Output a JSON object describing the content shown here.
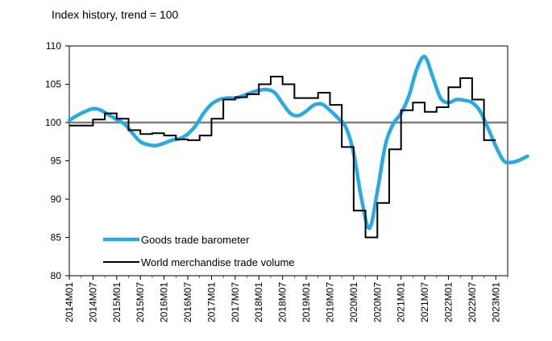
{
  "chart_data": {
    "type": "line",
    "title": "Index history, trend = 100",
    "xlabel": "",
    "ylabel": "",
    "ylim": [
      80,
      110
    ],
    "yticks": [
      80,
      85,
      90,
      95,
      100,
      105,
      110
    ],
    "xlim": [
      "2014M01",
      "2023M04"
    ],
    "xticks": [
      "2014M01",
      "2014M07",
      "2015M01",
      "2015M07",
      "2016M01",
      "2016M07",
      "2017M01",
      "2017M07",
      "2018M01",
      "2018M07",
      "2019M01",
      "2019M07",
      "2020M01",
      "2020M07",
      "2021M01",
      "2021M07",
      "2022M01",
      "2022M07",
      "2023M01"
    ],
    "grid": false,
    "legend_position": "bottom-left inside",
    "reference_line": {
      "y": 100,
      "color": "#7f7f7f"
    },
    "series": [
      {
        "name": "Goods trade barometer",
        "color": "#29abe2",
        "style": "smooth",
        "points": [
          [
            "2014M01",
            100.3
          ],
          [
            "2014M04",
            101.2
          ],
          [
            "2014M07",
            101.8
          ],
          [
            "2014M09",
            101.6
          ],
          [
            "2014M11",
            101.0
          ],
          [
            "2015M01",
            100.4
          ],
          [
            "2015M03",
            99.8
          ],
          [
            "2015M05",
            98.6
          ],
          [
            "2015M07",
            97.5
          ],
          [
            "2015M09",
            97.1
          ],
          [
            "2015M11",
            97.0
          ],
          [
            "2016M01",
            97.3
          ],
          [
            "2016M03",
            97.7
          ],
          [
            "2016M05",
            97.9
          ],
          [
            "2016M07",
            98.5
          ],
          [
            "2016M09",
            99.6
          ],
          [
            "2016M11",
            101.2
          ],
          [
            "2017M01",
            102.4
          ],
          [
            "2017M03",
            103.0
          ],
          [
            "2017M05",
            103.2
          ],
          [
            "2017M07",
            103.2
          ],
          [
            "2017M09",
            103.5
          ],
          [
            "2017M11",
            103.9
          ],
          [
            "2018M01",
            104.2
          ],
          [
            "2018M03",
            104.3
          ],
          [
            "2018M05",
            103.9
          ],
          [
            "2018M07",
            102.5
          ],
          [
            "2018M09",
            101.2
          ],
          [
            "2018M11",
            100.9
          ],
          [
            "2019M01",
            101.5
          ],
          [
            "2019M03",
            102.3
          ],
          [
            "2019M05",
            102.4
          ],
          [
            "2019M07",
            101.6
          ],
          [
            "2019M09",
            100.6
          ],
          [
            "2019M11",
            99.4
          ],
          [
            "2020M01",
            96.0
          ],
          [
            "2020M03",
            90.0
          ],
          [
            "2020M05",
            86.2
          ],
          [
            "2020M07",
            91.0
          ],
          [
            "2020M09",
            97.0
          ],
          [
            "2020M11",
            99.8
          ],
          [
            "2021M01",
            101.2
          ],
          [
            "2021M03",
            103.5
          ],
          [
            "2021M05",
            107.0
          ],
          [
            "2021M07",
            108.6
          ],
          [
            "2021M09",
            106.0
          ],
          [
            "2021M11",
            103.2
          ],
          [
            "2022M01",
            102.6
          ],
          [
            "2022M03",
            103.0
          ],
          [
            "2022M05",
            102.9
          ],
          [
            "2022M07",
            102.6
          ],
          [
            "2022M09",
            101.5
          ],
          [
            "2022M11",
            99.3
          ],
          [
            "2023M01",
            96.9
          ],
          [
            "2023M03",
            95.0
          ],
          [
            "2023M05",
            94.8
          ],
          [
            "2023M07",
            95.1
          ],
          [
            "2023M09",
            95.6
          ]
        ]
      },
      {
        "name": "World merchandise trade volume",
        "color": "#000000",
        "style": "step",
        "points": [
          [
            "2014M01",
            99.6
          ],
          [
            "2014M04",
            99.6
          ],
          [
            "2014M07",
            100.4
          ],
          [
            "2014M10",
            101.2
          ],
          [
            "2015M01",
            100.5
          ],
          [
            "2015M04",
            99.0
          ],
          [
            "2015M07",
            98.5
          ],
          [
            "2015M10",
            98.6
          ],
          [
            "2016M01",
            98.3
          ],
          [
            "2016M04",
            97.8
          ],
          [
            "2016M07",
            97.7
          ],
          [
            "2016M10",
            98.3
          ],
          [
            "2017M01",
            100.5
          ],
          [
            "2017M04",
            103.0
          ],
          [
            "2017M07",
            103.3
          ],
          [
            "2017M10",
            103.7
          ],
          [
            "2018M01",
            105.0
          ],
          [
            "2018M04",
            106.0
          ],
          [
            "2018M07",
            105.0
          ],
          [
            "2018M10",
            103.2
          ],
          [
            "2019M01",
            103.2
          ],
          [
            "2019M04",
            103.9
          ],
          [
            "2019M07",
            102.3
          ],
          [
            "2019M10",
            96.8
          ],
          [
            "2020M01",
            88.5
          ],
          [
            "2020M04",
            85.0
          ],
          [
            "2020M07",
            89.5
          ],
          [
            "2020M10",
            96.5
          ],
          [
            "2021M01",
            101.6
          ],
          [
            "2021M04",
            102.6
          ],
          [
            "2021M07",
            101.4
          ],
          [
            "2021M10",
            102.0
          ],
          [
            "2022M01",
            104.6
          ],
          [
            "2022M04",
            105.8
          ],
          [
            "2022M07",
            103.0
          ],
          [
            "2022M10",
            97.7
          ]
        ],
        "end": "2023M01"
      }
    ]
  }
}
